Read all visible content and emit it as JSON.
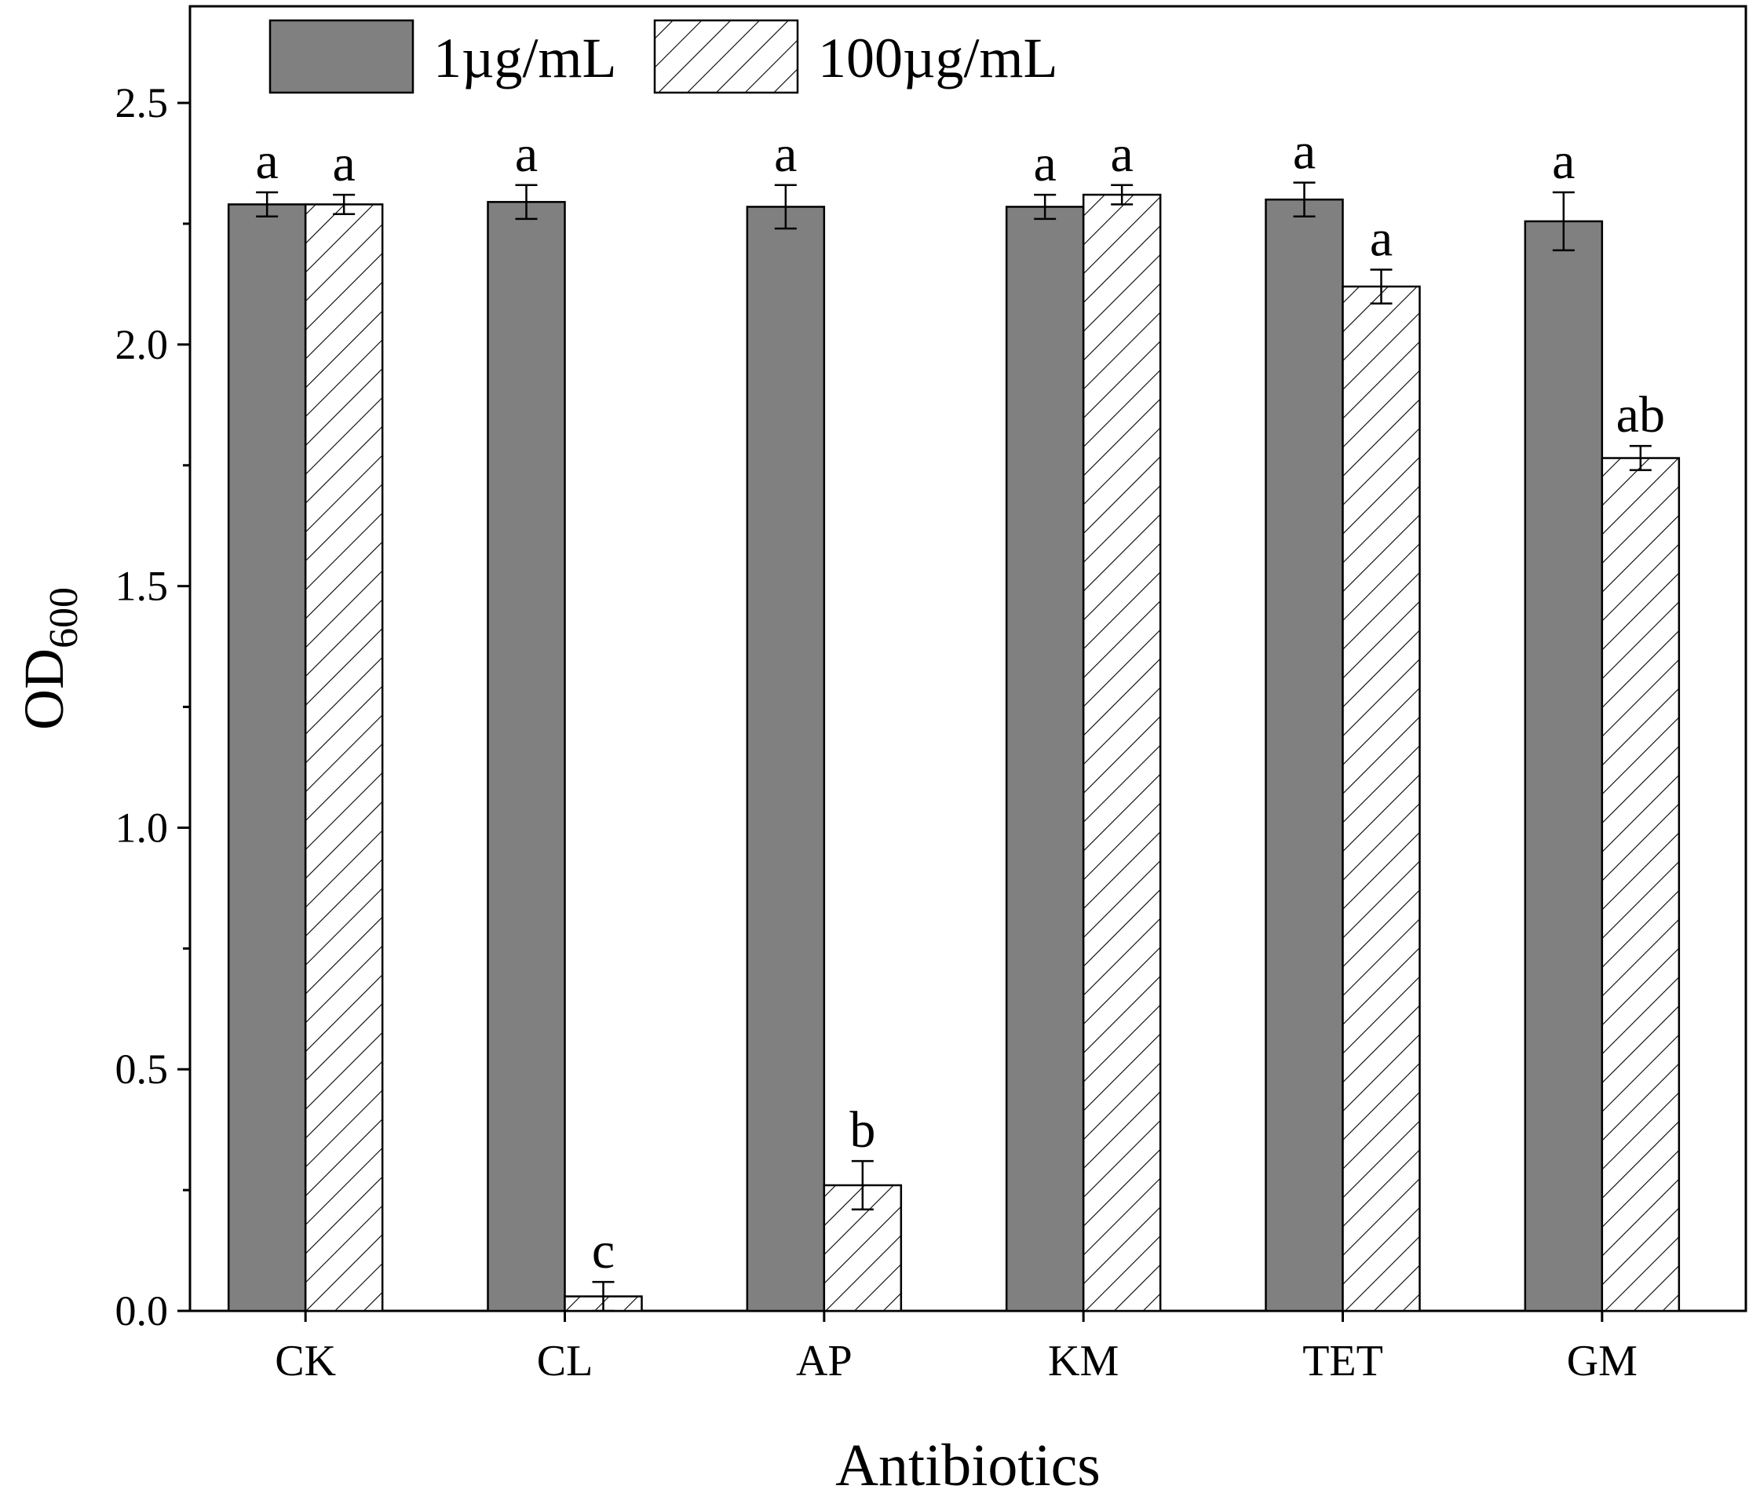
{
  "chart_data": {
    "type": "bar",
    "title": "",
    "xlabel": "Antibiotics",
    "ylabel": "OD",
    "ylabel_subscript": "600",
    "ylim": [
      0,
      2.7
    ],
    "yticks": [
      "0.0",
      "0.5",
      "1.0",
      "1.5",
      "2.0",
      "2.5"
    ],
    "ytick_values": [
      0,
      0.5,
      1.0,
      1.5,
      2.0,
      2.5
    ],
    "categories": [
      "CK",
      "CL",
      "AP",
      "KM",
      "TET",
      "GM"
    ],
    "legend_position": "top-left",
    "series": [
      {
        "name": "1µg/mL",
        "pattern": "solid",
        "color": "#808080",
        "values": [
          2.29,
          2.295,
          2.285,
          2.285,
          2.3,
          2.255
        ],
        "errors": [
          0.025,
          0.035,
          0.045,
          0.025,
          0.035,
          0.06
        ],
        "labels": [
          "a",
          "a",
          "a",
          "a",
          "a",
          "a"
        ]
      },
      {
        "name": "100µg/mL",
        "pattern": "hatch",
        "color": "#ffffff",
        "values": [
          2.29,
          0.03,
          0.26,
          2.31,
          2.12,
          1.765
        ],
        "errors": [
          0.02,
          0.03,
          0.05,
          0.02,
          0.035,
          0.025
        ],
        "labels": [
          "a",
          "c",
          "b",
          "a",
          "a",
          "ab"
        ]
      }
    ]
  }
}
